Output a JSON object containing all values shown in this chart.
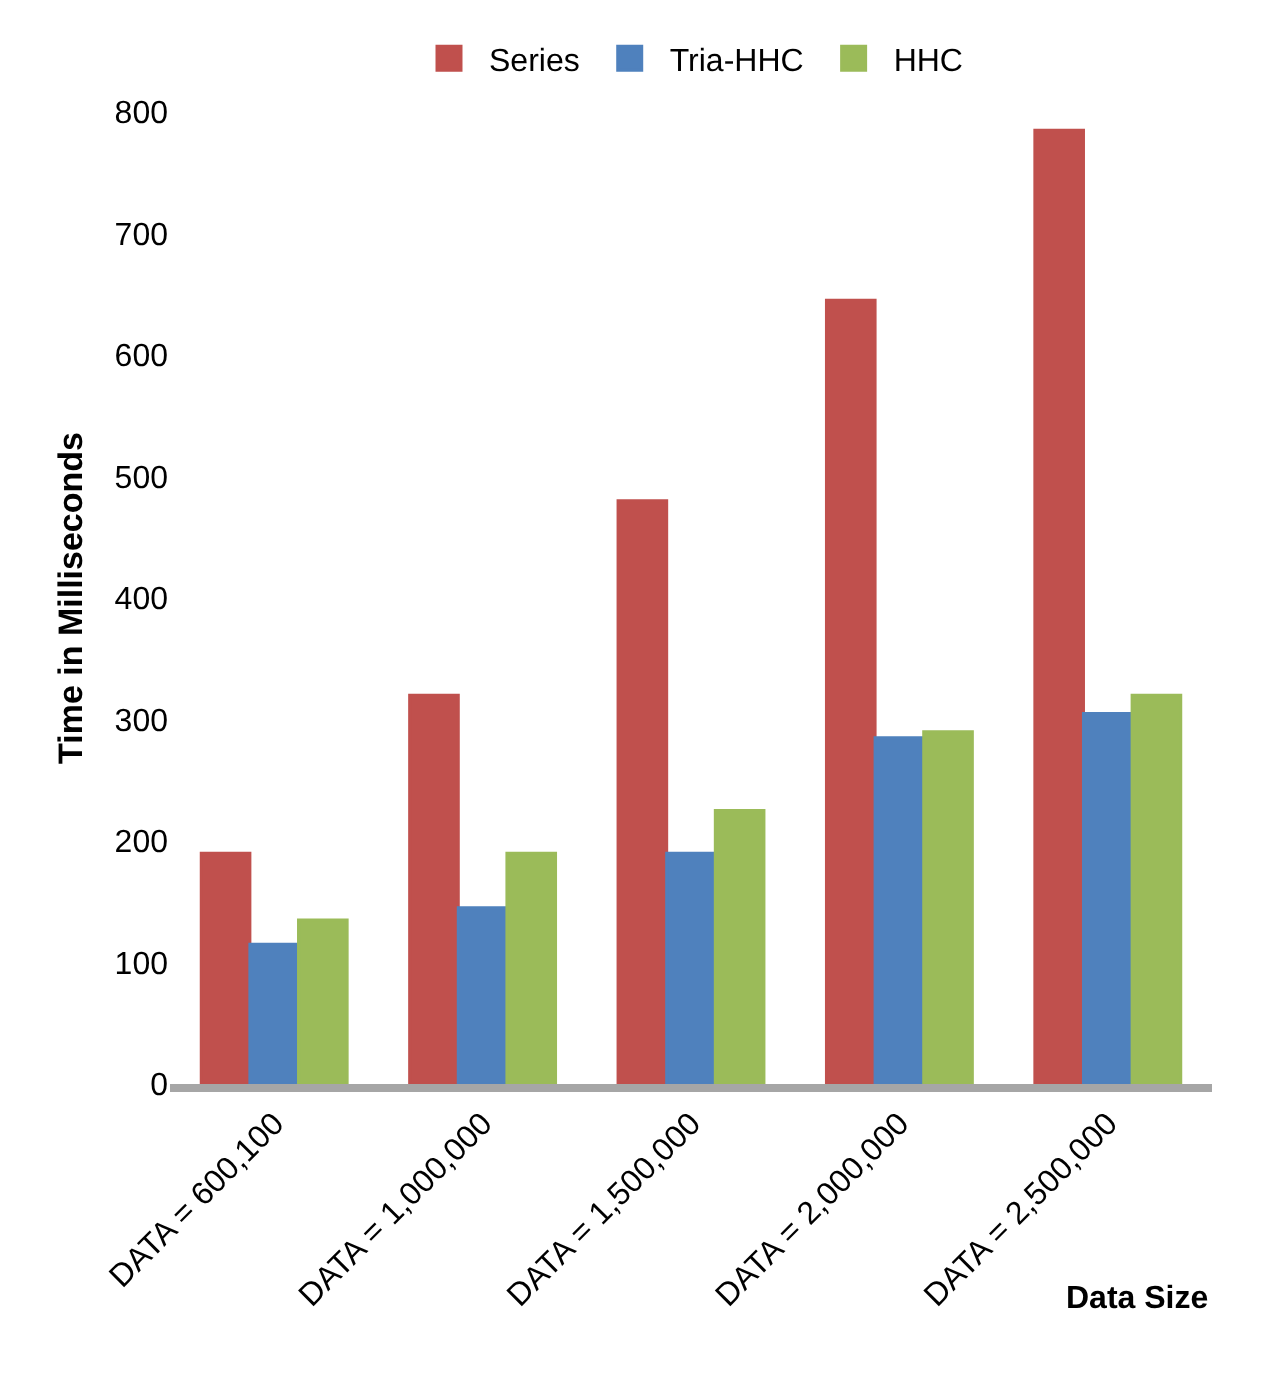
{
  "chart_data": {
    "type": "bar",
    "xlabel": "Data Size",
    "ylabel": "Time in Milliseconds",
    "categories": [
      "DATA = 600,100",
      "DATA = 1,000,000",
      "DATA = 1,500,000",
      "DATA = 2,000,000",
      "DATA = 2,500,000"
    ],
    "series": [
      {
        "name": "Series",
        "color": "#c0504d",
        "values": [
          190,
          320,
          480,
          645,
          785
        ]
      },
      {
        "name": "Tria-HHC",
        "color": "#4f81bd",
        "values": [
          115,
          145,
          190,
          285,
          305
        ]
      },
      {
        "name": "HHC",
        "color": "#9bbb59",
        "values": [
          135,
          190,
          225,
          290,
          320
        ]
      }
    ],
    "ylim": [
      0,
      800
    ],
    "yticks": [
      0,
      100,
      200,
      300,
      400,
      500,
      600,
      700,
      800
    ],
    "grid": false,
    "legend": "top"
  }
}
